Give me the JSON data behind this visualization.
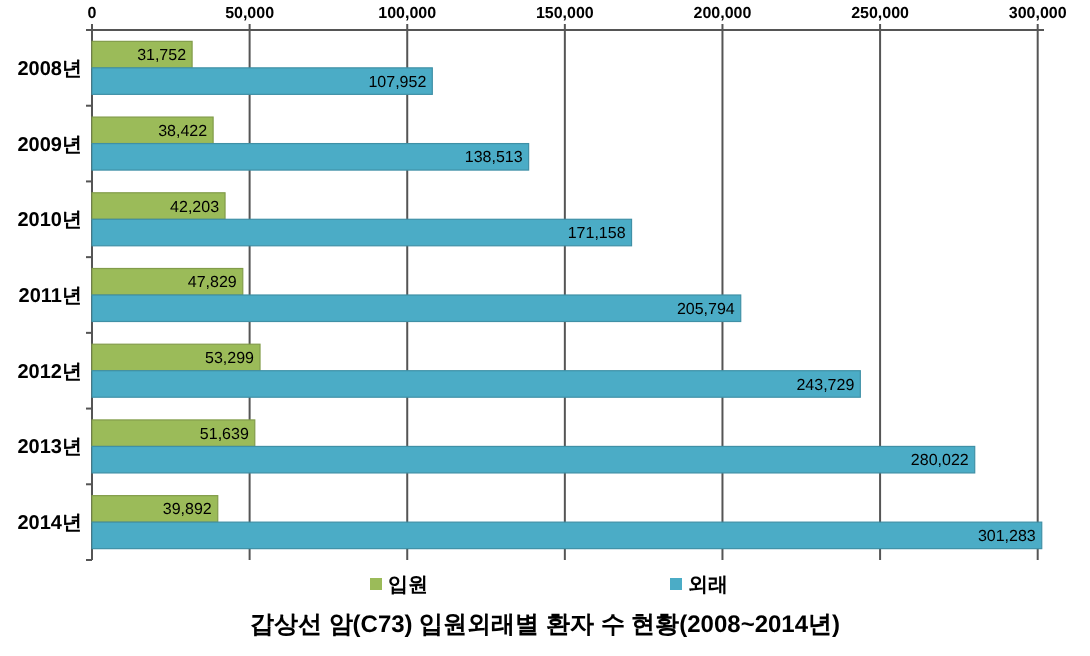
{
  "chart_data": {
    "type": "bar",
    "orientation": "horizontal",
    "title": "갑상선 암(C73) 입원외래별 환자 수 현황(2008~2014년)",
    "categories": [
      "2008년",
      "2009년",
      "2010년",
      "2011년",
      "2012년",
      "2013년",
      "2014년"
    ],
    "series": [
      {
        "name": "입원",
        "color": "#9bbb59",
        "values": [
          31752,
          38422,
          42203,
          47829,
          53299,
          51639,
          39892
        ],
        "value_labels": [
          "31,752",
          "38,422",
          "42,203",
          "47,829",
          "53,299",
          "51,639",
          "39,892"
        ]
      },
      {
        "name": "외래",
        "color": "#4bacc6",
        "values": [
          107952,
          138513,
          171158,
          205794,
          243729,
          280022,
          301283
        ],
        "value_labels": [
          "107,952",
          "138,513",
          "171,158",
          "205,794",
          "243,729",
          "280,022",
          "301,283"
        ]
      }
    ],
    "xlim": [
      0,
      302000
    ],
    "xticks": [
      {
        "value": 0,
        "label": "0"
      },
      {
        "value": 50000,
        "label": "50,000"
      },
      {
        "value": 100000,
        "label": "100,000"
      },
      {
        "value": 150000,
        "label": "150,000"
      },
      {
        "value": 200000,
        "label": "200,000"
      },
      {
        "value": 250000,
        "label": "250,000"
      },
      {
        "value": 300000,
        "label": "300,000"
      }
    ],
    "grid": "x",
    "legend": "bottom"
  }
}
